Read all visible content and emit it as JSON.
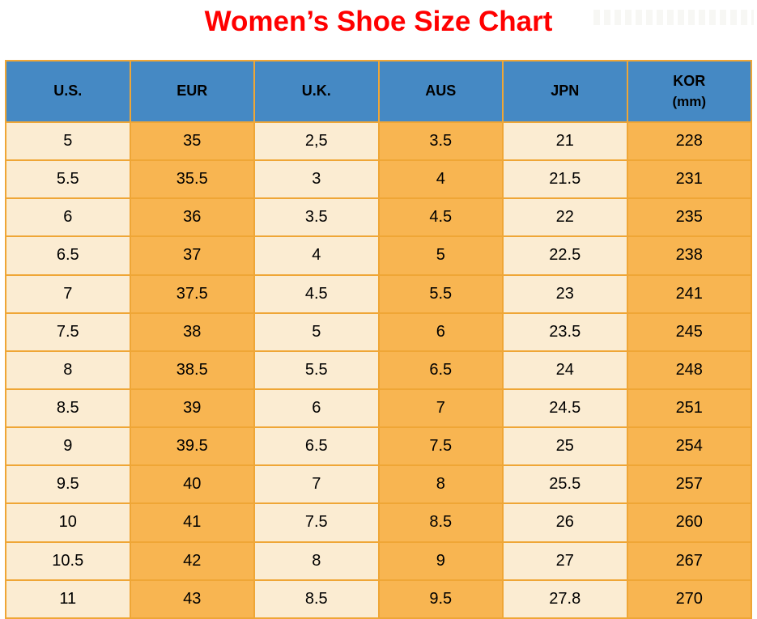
{
  "chart_data": {
    "type": "table",
    "title": "Women’s Shoe Size Chart",
    "columns": [
      "U.S.",
      "EUR",
      "U.K.",
      "AUS",
      "JPN",
      "KOR (mm)"
    ],
    "rows": [
      [
        "5",
        "35",
        "2,5",
        "3.5",
        "21",
        "228"
      ],
      [
        "5.5",
        "35.5",
        "3",
        "4",
        "21.5",
        "231"
      ],
      [
        "6",
        "36",
        "3.5",
        "4.5",
        "22",
        "235"
      ],
      [
        "6.5",
        "37",
        "4",
        "5",
        "22.5",
        "238"
      ],
      [
        "7",
        "37.5",
        "4.5",
        "5.5",
        "23",
        "241"
      ],
      [
        "7.5",
        "38",
        "5",
        "6",
        "23.5",
        "245"
      ],
      [
        "8",
        "38.5",
        "5.5",
        "6.5",
        "24",
        "248"
      ],
      [
        "8.5",
        "39",
        "6",
        "7",
        "24.5",
        "251"
      ],
      [
        "9",
        "39.5",
        "6.5",
        "7.5",
        "25",
        "254"
      ],
      [
        "9.5",
        "40",
        "7",
        "8",
        "25.5",
        "257"
      ],
      [
        "10",
        "41",
        "7.5",
        "8.5",
        "26",
        "260"
      ],
      [
        "10.5",
        "42",
        "8",
        "9",
        "27",
        "267"
      ],
      [
        "11",
        "43",
        "8.5",
        "9.5",
        "27.8",
        "270"
      ]
    ]
  },
  "table": {
    "headers": [
      {
        "key": "us",
        "label": "U.S."
      },
      {
        "key": "eur",
        "label": "EUR"
      },
      {
        "key": "uk",
        "label": "U.K."
      },
      {
        "key": "aus",
        "label": "AUS"
      },
      {
        "key": "jpn",
        "label": "JPN"
      },
      {
        "key": "kor",
        "label": "KOR",
        "sub": "(mm)"
      }
    ]
  },
  "colors": {
    "title_red": "#ff0000",
    "header_blue": "#4589c4",
    "cell_cream": "#fbecd2",
    "cell_orange": "#f8b551",
    "border_gold": "#efa636"
  }
}
